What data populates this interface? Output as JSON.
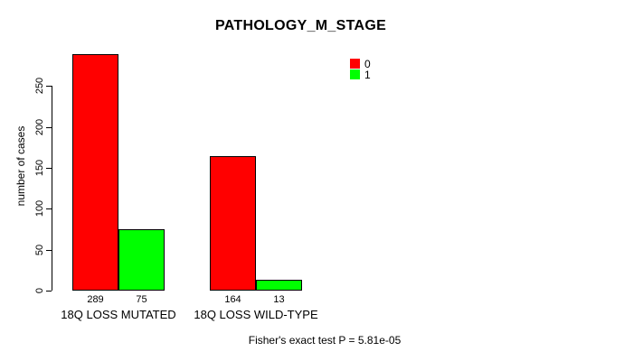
{
  "chart_data": {
    "type": "bar",
    "title": "PATHOLOGY_M_STAGE",
    "xlabel": "",
    "ylabel": "number of cases",
    "categories": [
      "18Q LOSS MUTATED",
      "18Q LOSS WILD-TYPE"
    ],
    "series": [
      {
        "name": "0",
        "color": "#ff0000",
        "values": [
          289,
          164
        ]
      },
      {
        "name": "1",
        "color": "#00ff00",
        "values": [
          75,
          13
        ]
      }
    ],
    "yticks": [
      0,
      50,
      100,
      150,
      200,
      250
    ],
    "ylim": [
      0,
      290
    ],
    "grid": false,
    "legend_position": "top-right",
    "annotation": "Fisher's exact test P = 5.81e-05"
  }
}
